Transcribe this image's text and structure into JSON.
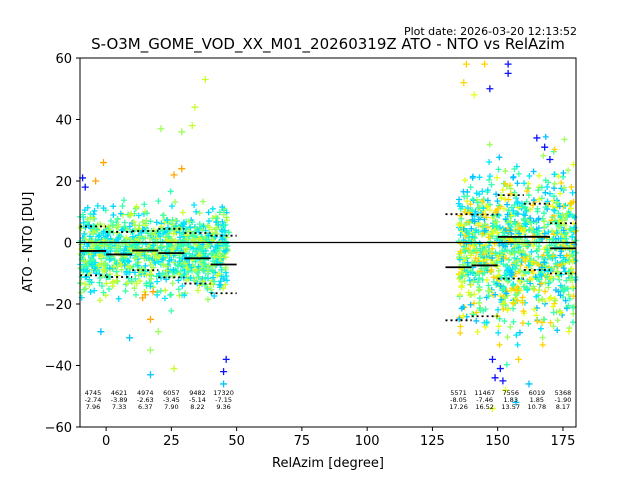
{
  "plot_date": "Plot date: 2026-03-20 12:13:52",
  "chart_data": {
    "type": "scatter",
    "title": "S-O3M_GOME_VOD_XX_M01_20260319Z ATO - NTO vs RelAzim",
    "xlabel": "RelAzim [degree]",
    "ylabel": "ATO - NTO [DU]",
    "xlim": [
      -10,
      180
    ],
    "ylim": [
      -60,
      60
    ],
    "xticks": [
      0,
      25,
      50,
      75,
      100,
      125,
      150,
      175
    ],
    "yticks": [
      -60,
      -40,
      -20,
      0,
      20,
      40,
      60
    ],
    "zero_line": 0,
    "bins": [
      {
        "x": [
          -10,
          0
        ],
        "mean": -2.74,
        "std": 7.96,
        "count": "4745",
        "mean_label": "-2.74",
        "std_label": "7.96"
      },
      {
        "x": [
          0,
          10
        ],
        "mean": -3.89,
        "std": 7.33,
        "count": "4621",
        "mean_label": "-3.89",
        "std_label": "7.33"
      },
      {
        "x": [
          10,
          20
        ],
        "mean": -2.63,
        "std": 6.37,
        "count": "4974",
        "mean_label": "-2.63",
        "std_label": "6.37"
      },
      {
        "x": [
          20,
          30
        ],
        "mean": -3.45,
        "std": 7.9,
        "count": "6057",
        "mean_label": "-3.45",
        "std_label": "7.90"
      },
      {
        "x": [
          30,
          40
        ],
        "mean": -5.14,
        "std": 8.22,
        "count": "9482",
        "mean_label": "-5.14",
        "std_label": "8.22"
      },
      {
        "x": [
          40,
          50
        ],
        "mean": -7.15,
        "std": 9.36,
        "count": "17320",
        "mean_label": "-7.15",
        "std_label": "9.36"
      },
      {
        "x": [
          130,
          140
        ],
        "mean": -8.05,
        "std": 17.26,
        "count": "5571",
        "mean_label": "-8.05",
        "std_label": "17.26"
      },
      {
        "x": [
          140,
          150
        ],
        "mean": -7.46,
        "std": 16.52,
        "count": "11467",
        "mean_label": "-7.46",
        "std_label": "16.52"
      },
      {
        "x": [
          150,
          160
        ],
        "mean": 1.83,
        "std": 13.57,
        "count": "7556",
        "mean_label": "1.83",
        "std_label": "13.57"
      },
      {
        "x": [
          160,
          170
        ],
        "mean": 1.85,
        "std": 10.78,
        "count": "6019",
        "mean_label": "1.85",
        "std_label": "10.78"
      },
      {
        "x": [
          170,
          180
        ],
        "mean": -1.9,
        "std": 8.17,
        "count": "5368",
        "mean_label": "-1.90",
        "std_label": "8.17"
      }
    ],
    "point_clouds": [
      {
        "x_range": [
          -10,
          47
        ],
        "center": -2.5,
        "spread": 12,
        "colors": [
          "#00e5ff",
          "#2fffb0",
          "#3dffa9",
          "#00d7ff",
          "#9cff5a",
          "#c6ff30"
        ]
      },
      {
        "x_range": [
          135,
          180
        ],
        "center": -2,
        "spread": 22,
        "colors": [
          "#00e5ff",
          "#2fffb0",
          "#3dffa9",
          "#00c4ff",
          "#9cff5a",
          "#e6ff1a",
          "#ffd400"
        ]
      }
    ],
    "outlier_points": [
      {
        "x": -9,
        "y": 21,
        "color": "#0a12ff"
      },
      {
        "x": -8,
        "y": 18,
        "color": "#0a12ff"
      },
      {
        "x": -4,
        "y": 20,
        "color": "#ffa500"
      },
      {
        "x": -1,
        "y": 26,
        "color": "#ffa500"
      },
      {
        "x": 17,
        "y": -25,
        "color": "#ffa500"
      },
      {
        "x": 15,
        "y": -17,
        "color": "#ffa500"
      },
      {
        "x": 14,
        "y": -18,
        "color": "#ffa500"
      },
      {
        "x": 18,
        "y": -16,
        "color": "#ffa500"
      },
      {
        "x": 29,
        "y": 24,
        "color": "#ffa500"
      },
      {
        "x": 26,
        "y": 22,
        "color": "#ffa500"
      },
      {
        "x": 38,
        "y": 53,
        "color": "#c6ff30"
      },
      {
        "x": 34,
        "y": 44,
        "color": "#c6ff30"
      },
      {
        "x": 33,
        "y": 38,
        "color": "#c6ff30"
      },
      {
        "x": 21,
        "y": 37,
        "color": "#9cff5a"
      },
      {
        "x": 29,
        "y": 36,
        "color": "#9cff5a"
      },
      {
        "x": 45,
        "y": -46,
        "color": "#00c4ff"
      },
      {
        "x": 17,
        "y": -43,
        "color": "#00c4ff"
      },
      {
        "x": 9,
        "y": -31,
        "color": "#00c4ff"
      },
      {
        "x": -2,
        "y": -29,
        "color": "#00c4ff"
      },
      {
        "x": 45,
        "y": -42,
        "color": "#0a12ff"
      },
      {
        "x": 46,
        "y": -38,
        "color": "#0a12ff"
      },
      {
        "x": 17,
        "y": -35,
        "color": "#9cff5a"
      },
      {
        "x": 26,
        "y": -41,
        "color": "#c6ff30"
      },
      {
        "x": 20,
        "y": -29,
        "color": "#9cff5a"
      },
      {
        "x": 154,
        "y": 58,
        "color": "#0a12ff"
      },
      {
        "x": 154,
        "y": 55,
        "color": "#0a12ff"
      },
      {
        "x": 147,
        "y": 50,
        "color": "#0a12ff"
      },
      {
        "x": 151,
        "y": -41,
        "color": "#0a12ff"
      },
      {
        "x": 149,
        "y": -44,
        "color": "#0a12ff"
      },
      {
        "x": 152,
        "y": -45,
        "color": "#0a12ff"
      },
      {
        "x": 148,
        "y": -38,
        "color": "#0a12ff"
      },
      {
        "x": 168,
        "y": 31,
        "color": "#0a12ff"
      },
      {
        "x": 170,
        "y": 27,
        "color": "#0a12ff"
      },
      {
        "x": 165,
        "y": 34,
        "color": "#0a12ff"
      },
      {
        "x": 138,
        "y": 58,
        "color": "#ffd400"
      },
      {
        "x": 137,
        "y": 52,
        "color": "#ffd400"
      },
      {
        "x": 145,
        "y": 58,
        "color": "#ffd400"
      },
      {
        "x": 141,
        "y": 48,
        "color": "#e6ff1a"
      },
      {
        "x": 148,
        "y": -54,
        "color": "#e6ff1a"
      },
      {
        "x": 153,
        "y": -48,
        "color": "#e6ff1a"
      },
      {
        "x": 157,
        "y": -52,
        "color": "#00c4ff"
      },
      {
        "x": 162,
        "y": -46,
        "color": "#00c4ff"
      },
      {
        "x": 158,
        "y": -38,
        "color": "#ffd400"
      },
      {
        "x": 167,
        "y": -26,
        "color": "#ffd400"
      }
    ]
  }
}
